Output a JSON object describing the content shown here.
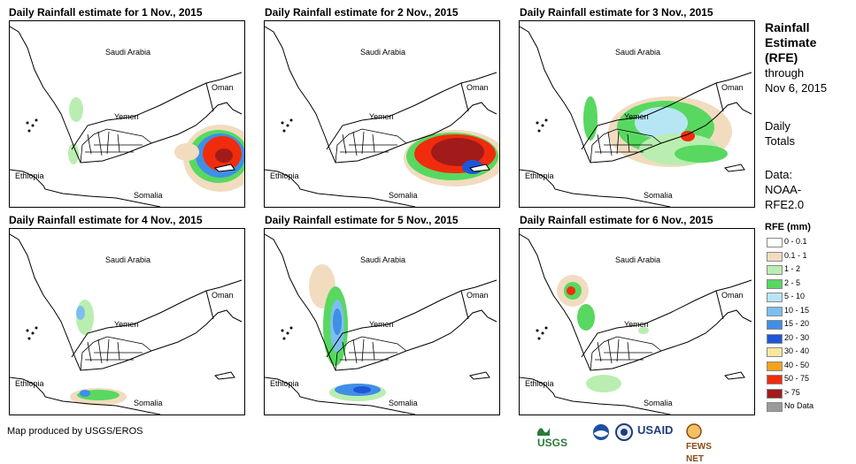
{
  "panels": [
    {
      "title": "Daily Rainfall estimate for 1 Nov., 2015",
      "labels": {
        "saudi": "Saudi Arabia",
        "oman": "Oman",
        "yemen": "Yemen",
        "ethiopia": "Ethiopia",
        "somalia": "Somalia"
      }
    },
    {
      "title": "Daily Rainfall estimate for 2 Nov., 2015",
      "labels": {
        "saudi": "Saudi Arabia",
        "oman": "Oman",
        "yemen": "Yemen",
        "ethiopia": "Ethiopia",
        "somalia": "Somalia"
      }
    },
    {
      "title": "Daily Rainfall estimate for 3 Nov., 2015",
      "labels": {
        "saudi": "Saudi Arabia",
        "oman": "Oman",
        "yemen": "Yemen",
        "ethiopia": "Ethiopia",
        "somalia": "Somalia"
      }
    },
    {
      "title": "Daily Rainfall estimate for 4 Nov., 2015",
      "labels": {
        "saudi": "Saudi Arabia",
        "oman": "Oman",
        "yemen": "Yemen",
        "ethiopia": "Ethiopia",
        "somalia": "Somalia"
      }
    },
    {
      "title": "Daily Rainfall estimate for 5 Nov., 2015",
      "labels": {
        "saudi": "Saudi Arabia",
        "oman": "Oman",
        "yemen": "Yemen",
        "ethiopia": "Ethiopia",
        "somalia": "Somalia"
      }
    },
    {
      "title": "Daily Rainfall estimate for 6 Nov., 2015",
      "labels": {
        "saudi": "Saudi Arabia",
        "oman": "Oman",
        "yemen": "Yemen",
        "ethiopia": "Ethiopia",
        "somalia": "Somalia"
      }
    }
  ],
  "sidebar": {
    "heading1": "Rainfall",
    "heading2": "Estimate",
    "heading3": "(RFE)",
    "through": "through",
    "date": "Nov 6, 2015",
    "daily1": "Daily",
    "daily2": "Totals",
    "data_label": "Data:",
    "data_src1": "NOAA-",
    "data_src2": "RFE2.0"
  },
  "legend": {
    "title": "RFE (mm)",
    "items": [
      {
        "label": "0 - 0.1",
        "color": "#ffffff"
      },
      {
        "label": "0.1 - 1",
        "color": "#f1dcc0"
      },
      {
        "label": "1 - 2",
        "color": "#b9eeb0"
      },
      {
        "label": "2 - 5",
        "color": "#58d860"
      },
      {
        "label": "5 - 10",
        "color": "#b6e6f4"
      },
      {
        "label": "10 - 15",
        "color": "#7cbfee"
      },
      {
        "label": "15 - 20",
        "color": "#3f8fe6"
      },
      {
        "label": "20 - 30",
        "color": "#1f55d9"
      },
      {
        "label": "30 - 40",
        "color": "#f9e79a"
      },
      {
        "label": "40 - 50",
        "color": "#f5a21b"
      },
      {
        "label": "50 - 75",
        "color": "#f02c0c"
      },
      {
        "label": "> 75",
        "color": "#a11b1b"
      },
      {
        "label": "No Data",
        "color": "#9a9a9a"
      }
    ]
  },
  "credit": "Map produced by USGS/EROS",
  "logos": {
    "usgs": "USGS",
    "usaid": "USAID",
    "fews": "FEWS NET"
  }
}
